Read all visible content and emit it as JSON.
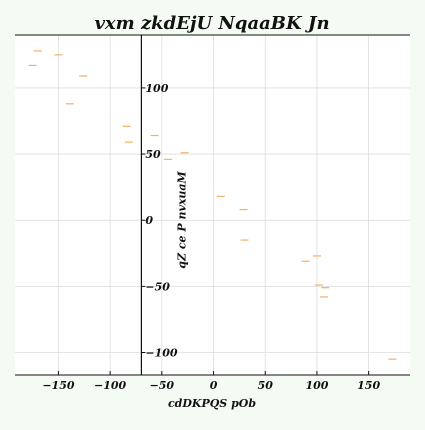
{
  "chart_data": {
    "type": "scatter",
    "title": "vxm zkdEjU NqaaBK Jn",
    "xlabel": "cdDKPQS pOb",
    "ylabel": "qZ ce P nvxuaM",
    "xlim": [
      -192,
      190
    ],
    "ylim": [
      -117,
      140
    ],
    "x_ticks": [
      -150,
      -100,
      -50,
      0,
      50,
      100,
      150
    ],
    "y_ticks": [
      -100,
      -50,
      0,
      50,
      100
    ],
    "x_tick_labels": [
      "−150",
      "−100",
      "−50",
      "0",
      "50",
      "100",
      "150"
    ],
    "y_tick_labels": [
      "−100",
      "−50",
      "0",
      "50",
      "100"
    ],
    "grid": true,
    "marker": "hline",
    "point_color": "#f0b26b",
    "background_color": "#ffffff",
    "series": [
      {
        "points": [
          {
            "x": -170,
            "y": 128
          },
          {
            "x": -175,
            "y": 117
          },
          {
            "x": -150,
            "y": 125
          },
          {
            "x": -126,
            "y": 109
          },
          {
            "x": -139,
            "y": 88
          },
          {
            "x": -84,
            "y": 71
          },
          {
            "x": -82,
            "y": 59
          },
          {
            "x": -57,
            "y": 64
          },
          {
            "x": -44,
            "y": 46
          },
          {
            "x": -28,
            "y": 51
          },
          {
            "x": 7,
            "y": 18
          },
          {
            "x": 29,
            "y": 8
          },
          {
            "x": 30,
            "y": -15
          },
          {
            "x": 89,
            "y": -31
          },
          {
            "x": 100,
            "y": -27
          },
          {
            "x": 102,
            "y": -49
          },
          {
            "x": 108,
            "y": -51
          },
          {
            "x": 107,
            "y": -58
          },
          {
            "x": 173,
            "y": -105
          }
        ]
      }
    ]
  }
}
